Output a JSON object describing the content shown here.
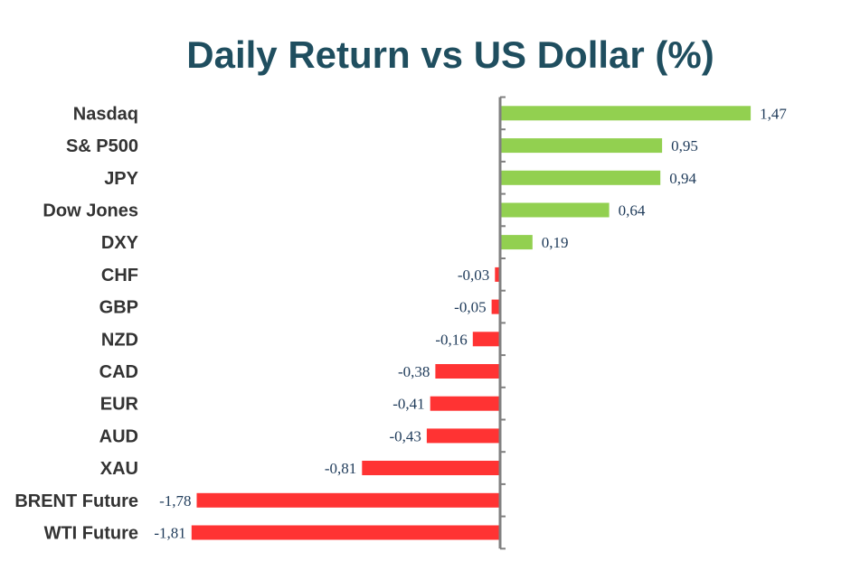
{
  "chart_data": {
    "type": "bar",
    "orientation": "horizontal",
    "title": "Daily Return vs US Dollar (%)",
    "xlabel": "",
    "ylabel": "",
    "categories": [
      "Nasdaq",
      "S& P500",
      "JPY",
      "Dow Jones",
      "DXY",
      "CHF",
      "GBP",
      "NZD",
      "CAD",
      "EUR",
      "AUD",
      "XAU",
      "BRENT Future",
      "WTI Future"
    ],
    "values": [
      1.47,
      0.95,
      0.94,
      0.64,
      0.19,
      -0.03,
      -0.05,
      -0.16,
      -0.38,
      -0.41,
      -0.43,
      -0.81,
      -1.78,
      -1.81
    ],
    "value_labels": [
      "1,47",
      "0,95",
      "0,94",
      "0,64",
      "0,19",
      "-0,03",
      "-0,05",
      "-0,16",
      "-0,38",
      "-0,41",
      "-0,43",
      "-0,81",
      "-1,78",
      "-1,81"
    ],
    "xlim": [
      -1.81,
      1.47
    ],
    "grid": false,
    "legend": "none",
    "colors": {
      "positive": "#92d050",
      "negative": "#ff3333",
      "axis": "#808080",
      "title": "#1f4e5f",
      "category_label": "#333333",
      "value_label": "#1f3b5a"
    }
  }
}
